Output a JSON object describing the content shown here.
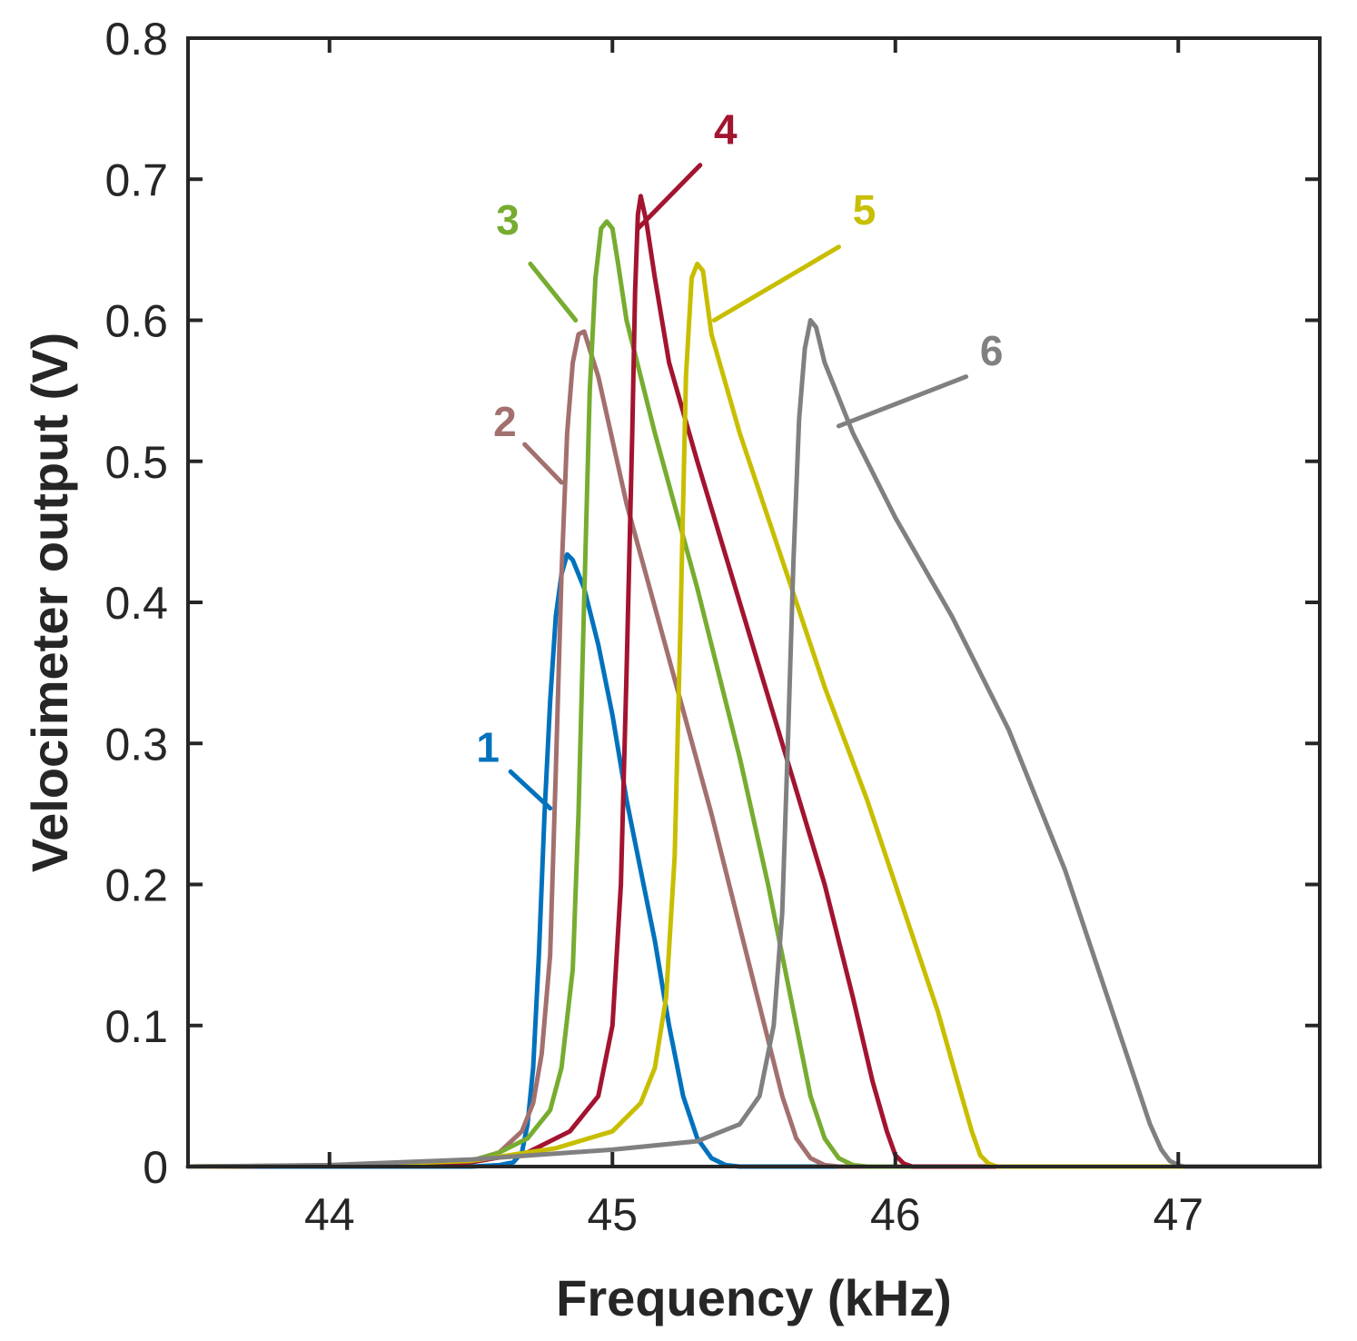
{
  "chart_data": {
    "type": "line",
    "title": "",
    "xlabel": "Frequency (kHz)",
    "ylabel": "Velocimeter output (V)",
    "xlim": [
      43.5,
      47.5
    ],
    "ylim": [
      0,
      0.8
    ],
    "grid": false,
    "x_ticks": [
      "44",
      "45",
      "46",
      "47"
    ],
    "y_ticks": [
      "0",
      "0.1",
      "0.2",
      "0.3",
      "0.4",
      "0.5",
      "0.6",
      "0.7",
      "0.8"
    ],
    "series": [
      {
        "name": "1",
        "color": "#0072BD",
        "x": [
          43.5,
          44.5,
          44.6,
          44.65,
          44.68,
          44.7,
          44.72,
          44.74,
          44.76,
          44.78,
          44.8,
          44.82,
          44.84,
          44.86,
          44.9,
          44.95,
          45.0,
          45.05,
          45.1,
          45.15,
          45.2,
          45.25,
          45.3,
          45.35,
          45.4,
          45.45,
          45.5,
          47.5
        ],
        "y": [
          0,
          0,
          0.001,
          0.003,
          0.01,
          0.03,
          0.07,
          0.15,
          0.25,
          0.33,
          0.39,
          0.42,
          0.434,
          0.43,
          0.41,
          0.37,
          0.32,
          0.26,
          0.21,
          0.16,
          0.1,
          0.05,
          0.02,
          0.006,
          0.001,
          0,
          0,
          0
        ]
      },
      {
        "name": "2",
        "color": "#A2706E",
        "x": [
          43.5,
          44.3,
          44.5,
          44.6,
          44.68,
          44.72,
          44.75,
          44.78,
          44.8,
          44.82,
          44.84,
          44.86,
          44.88,
          44.9,
          44.95,
          45.05,
          45.2,
          45.35,
          45.45,
          45.55,
          45.6,
          45.65,
          45.7,
          45.75,
          45.8,
          47.5
        ],
        "y": [
          0,
          0.001,
          0.004,
          0.01,
          0.025,
          0.045,
          0.08,
          0.15,
          0.28,
          0.42,
          0.52,
          0.57,
          0.59,
          0.592,
          0.56,
          0.47,
          0.36,
          0.25,
          0.17,
          0.09,
          0.05,
          0.02,
          0.006,
          0.001,
          0,
          0
        ]
      },
      {
        "name": "3",
        "color": "#77AC30",
        "x": [
          43.5,
          44.3,
          44.5,
          44.6,
          44.7,
          44.78,
          44.82,
          44.86,
          44.88,
          44.9,
          44.92,
          44.94,
          44.96,
          44.98,
          45.0,
          45.02,
          45.05,
          45.15,
          45.3,
          45.45,
          45.55,
          45.65,
          45.7,
          45.75,
          45.8,
          45.85,
          45.9,
          47.5
        ],
        "y": [
          0,
          0.001,
          0.004,
          0.01,
          0.02,
          0.04,
          0.07,
          0.14,
          0.25,
          0.4,
          0.55,
          0.63,
          0.665,
          0.67,
          0.665,
          0.64,
          0.6,
          0.52,
          0.41,
          0.29,
          0.2,
          0.1,
          0.05,
          0.02,
          0.006,
          0.001,
          0,
          0
        ]
      },
      {
        "name": "4",
        "color": "#A2142F",
        "x": [
          43.5,
          44.0,
          44.5,
          44.7,
          44.85,
          44.95,
          45.0,
          45.03,
          45.05,
          45.07,
          45.08,
          45.09,
          45.1,
          45.12,
          45.15,
          45.2,
          45.3,
          45.45,
          45.6,
          45.75,
          45.85,
          45.92,
          45.97,
          46.0,
          46.03,
          46.06,
          47.5
        ],
        "y": [
          0,
          0.0005,
          0.003,
          0.01,
          0.025,
          0.05,
          0.1,
          0.2,
          0.35,
          0.52,
          0.62,
          0.675,
          0.688,
          0.67,
          0.63,
          0.57,
          0.5,
          0.4,
          0.3,
          0.2,
          0.12,
          0.06,
          0.025,
          0.008,
          0.002,
          0,
          0
        ]
      },
      {
        "name": "5",
        "color": "#C8BE00",
        "x": [
          43.5,
          44.0,
          44.5,
          44.8,
          45.0,
          45.1,
          45.15,
          45.19,
          45.22,
          45.24,
          45.26,
          45.28,
          45.3,
          45.32,
          45.35,
          45.45,
          45.6,
          45.75,
          45.9,
          46.05,
          46.15,
          46.22,
          46.27,
          46.3,
          46.33,
          46.36,
          47.5
        ],
        "y": [
          0,
          0.0008,
          0.004,
          0.013,
          0.025,
          0.045,
          0.07,
          0.12,
          0.22,
          0.38,
          0.56,
          0.63,
          0.64,
          0.635,
          0.59,
          0.52,
          0.43,
          0.34,
          0.26,
          0.17,
          0.11,
          0.06,
          0.025,
          0.008,
          0.002,
          0,
          0
        ]
      },
      {
        "name": "6",
        "color": "#808080",
        "x": [
          43.5,
          44.0,
          44.5,
          45.0,
          45.3,
          45.45,
          45.52,
          45.57,
          45.6,
          45.62,
          45.64,
          45.66,
          45.68,
          45.7,
          45.72,
          45.75,
          45.85,
          46.0,
          46.2,
          46.4,
          46.6,
          46.75,
          46.85,
          46.9,
          46.94,
          46.97,
          47.0,
          47.02,
          47.5
        ],
        "y": [
          0,
          0.001,
          0.005,
          0.012,
          0.018,
          0.03,
          0.05,
          0.1,
          0.18,
          0.3,
          0.43,
          0.53,
          0.58,
          0.6,
          0.595,
          0.57,
          0.52,
          0.46,
          0.39,
          0.31,
          0.21,
          0.12,
          0.06,
          0.03,
          0.012,
          0.004,
          0.001,
          0,
          0
        ]
      }
    ],
    "annotations": [
      {
        "text": "1",
        "series": "1",
        "color": "#0072BD",
        "text_at": [
          44.56,
          0.287
        ],
        "line_from": [
          44.64,
          0.28
        ],
        "line_to": [
          44.78,
          0.254
        ]
      },
      {
        "text": "2",
        "series": "2",
        "color": "#A2706E",
        "text_at": [
          44.62,
          0.518
        ],
        "line_from": [
          44.69,
          0.512
        ],
        "line_to": [
          44.82,
          0.485
        ]
      },
      {
        "text": "3",
        "series": "3",
        "color": "#77AC30",
        "text_at": [
          44.63,
          0.661
        ],
        "line_from": [
          44.71,
          0.64
        ],
        "line_to": [
          44.87,
          0.6
        ]
      },
      {
        "text": "4",
        "series": "4",
        "color": "#A2142F",
        "text_at": [
          45.4,
          0.725
        ],
        "line_from": [
          45.31,
          0.71
        ],
        "line_to": [
          45.09,
          0.665
        ]
      },
      {
        "text": "5",
        "series": "5",
        "color": "#C8BE00",
        "text_at": [
          45.89,
          0.668
        ],
        "line_from": [
          45.8,
          0.652
        ],
        "line_to": [
          45.36,
          0.6
        ]
      },
      {
        "text": "6",
        "series": "6",
        "color": "#808080",
        "text_at": [
          46.34,
          0.568
        ],
        "line_from": [
          46.25,
          0.56
        ],
        "line_to": [
          45.8,
          0.525
        ]
      }
    ]
  }
}
